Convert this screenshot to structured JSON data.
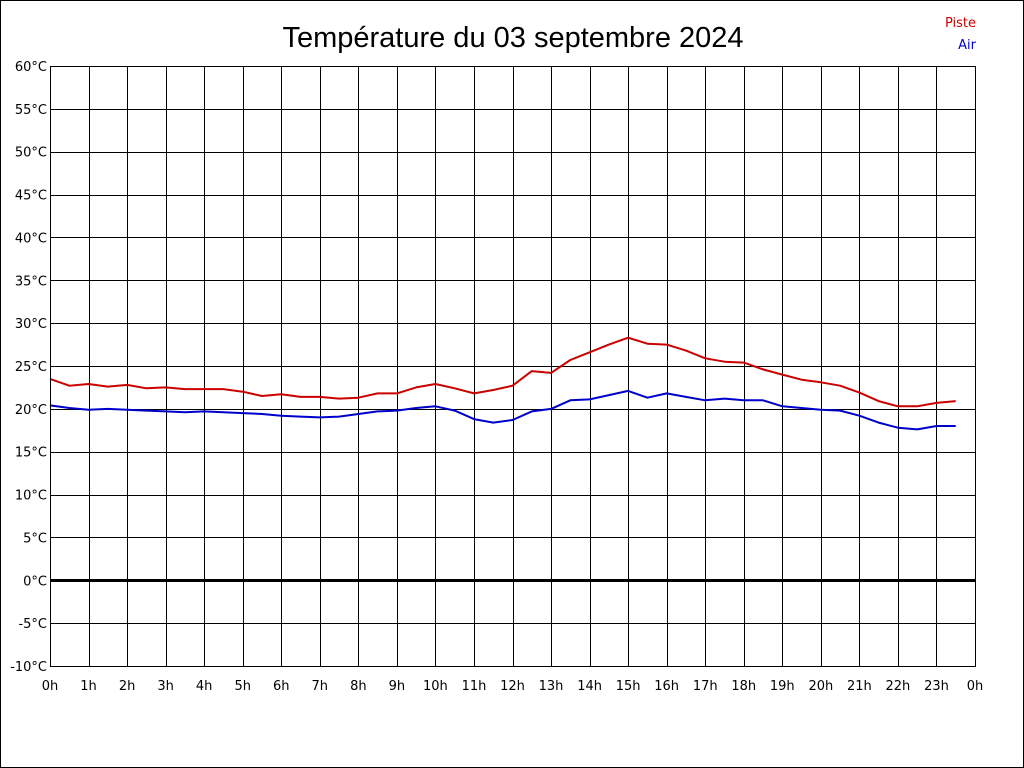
{
  "chart_data": {
    "type": "line",
    "title": "Température du 03 septembre 2024",
    "xlabel": "",
    "ylabel": "",
    "ylim": [
      -10,
      60
    ],
    "xlim": [
      0,
      24
    ],
    "y_ticks": [
      60,
      55,
      50,
      45,
      40,
      35,
      30,
      25,
      20,
      15,
      10,
      5,
      0,
      -5,
      -10
    ],
    "y_tick_labels": [
      "60°C",
      "55°C",
      "50°C",
      "45°C",
      "40°C",
      "35°C",
      "30°C",
      "25°C",
      "20°C",
      "15°C",
      "10°C",
      "5°C",
      "0°C",
      "-5°C",
      "-10°C"
    ],
    "x_ticks": [
      0,
      1,
      2,
      3,
      4,
      5,
      6,
      7,
      8,
      9,
      10,
      11,
      12,
      13,
      14,
      15,
      16,
      17,
      18,
      19,
      20,
      21,
      22,
      23,
      24
    ],
    "x_tick_labels": [
      "0h",
      "1h",
      "2h",
      "3h",
      "4h",
      "5h",
      "6h",
      "7h",
      "8h",
      "9h",
      "10h",
      "11h",
      "12h",
      "13h",
      "14h",
      "15h",
      "16h",
      "17h",
      "18h",
      "19h",
      "20h",
      "21h",
      "22h",
      "23h",
      "0h"
    ],
    "grid": true,
    "zero_line": true,
    "legend_position": "top-right",
    "series": [
      {
        "name": "Piste",
        "color": "#cc0000",
        "x": [
          0,
          0.5,
          1,
          1.5,
          2,
          2.5,
          3,
          3.5,
          4,
          4.5,
          5,
          5.5,
          6,
          6.5,
          7,
          7.5,
          8,
          8.5,
          9,
          9.5,
          10,
          10.5,
          11,
          11.5,
          12,
          12.5,
          13,
          13.5,
          14,
          14.5,
          15,
          15.5,
          16,
          16.5,
          17,
          17.5,
          18,
          18.5,
          19,
          19.5,
          20,
          20.5,
          21,
          21.5,
          22,
          22.5,
          23,
          23.5
        ],
        "values": [
          23.5,
          22.7,
          22.9,
          22.6,
          22.8,
          22.4,
          22.5,
          22.3,
          22.3,
          22.3,
          22.0,
          21.5,
          21.7,
          21.4,
          21.4,
          21.2,
          21.3,
          21.8,
          21.8,
          22.5,
          22.9,
          22.4,
          21.8,
          22.2,
          22.7,
          24.4,
          24.2,
          25.7,
          26.6,
          27.5,
          28.3,
          27.6,
          27.5,
          26.8,
          25.9,
          25.5,
          25.4,
          24.6,
          24.0,
          23.4,
          23.1,
          22.7,
          21.9,
          20.9,
          20.3,
          20.3,
          20.7,
          20.9
        ]
      },
      {
        "name": "Air",
        "color": "#0000cc",
        "x": [
          0,
          0.5,
          1,
          1.5,
          2,
          2.5,
          3,
          3.5,
          4,
          4.5,
          5,
          5.5,
          6,
          6.5,
          7,
          7.5,
          8,
          8.5,
          9,
          9.5,
          10,
          10.5,
          11,
          11.5,
          12,
          12.5,
          13,
          13.5,
          14,
          14.5,
          15,
          15.5,
          16,
          16.5,
          17,
          17.5,
          18,
          18.5,
          19,
          19.5,
          20,
          20.5,
          21,
          21.5,
          22,
          22.5,
          23,
          23.5
        ],
        "values": [
          20.4,
          20.1,
          19.9,
          20.0,
          19.9,
          19.8,
          19.7,
          19.6,
          19.7,
          19.6,
          19.5,
          19.4,
          19.2,
          19.1,
          19.0,
          19.1,
          19.4,
          19.7,
          19.8,
          20.1,
          20.3,
          19.8,
          18.8,
          18.4,
          18.7,
          19.7,
          20.0,
          21.0,
          21.1,
          21.6,
          22.1,
          21.3,
          21.8,
          21.4,
          21.0,
          21.2,
          21.0,
          21.0,
          20.3,
          20.1,
          19.9,
          19.8,
          19.2,
          18.4,
          17.8,
          17.6,
          18.0,
          18.0
        ]
      }
    ]
  }
}
